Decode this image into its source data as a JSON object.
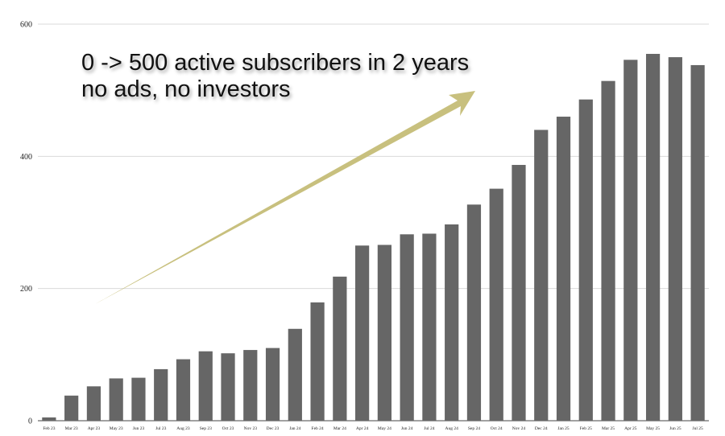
{
  "chart_data": {
    "type": "bar",
    "title": "",
    "xlabel": "",
    "ylabel": "",
    "ylim": [
      0,
      600
    ],
    "yticks": [
      0,
      200,
      400,
      600
    ],
    "grid": true,
    "bar_color": "#666666",
    "grid_color": "#d9d9d9",
    "arrow_color": "#c8c07e",
    "categories": [
      "Feb 23",
      "Mar 23",
      "Apr 23",
      "May 23",
      "Jun 23",
      "Jul 23",
      "Aug 23",
      "Sep 23",
      "Oct 23",
      "Nov 23",
      "Dec 23",
      "Jan 24",
      "Feb 24",
      "Mar 24",
      "Apr 24",
      "May 24",
      "Jun 24",
      "Jul 24",
      "Aug 24",
      "Sep 24",
      "Oct 24",
      "Nov 24",
      "Dec 24",
      "Jan 25",
      "Feb 25",
      "Mar 25",
      "Apr 25",
      "May 25",
      "Jun 25",
      "Jul 25"
    ],
    "values": [
      5,
      38,
      52,
      64,
      65,
      78,
      93,
      105,
      102,
      107,
      110,
      139,
      179,
      218,
      265,
      266,
      282,
      283,
      297,
      327,
      351,
      387,
      440,
      460,
      486,
      514,
      546,
      555,
      550,
      538
    ],
    "annotation": {
      "lines": [
        "0 -> 500 active subscribers in 2 years",
        "no ads, no investors"
      ]
    }
  }
}
